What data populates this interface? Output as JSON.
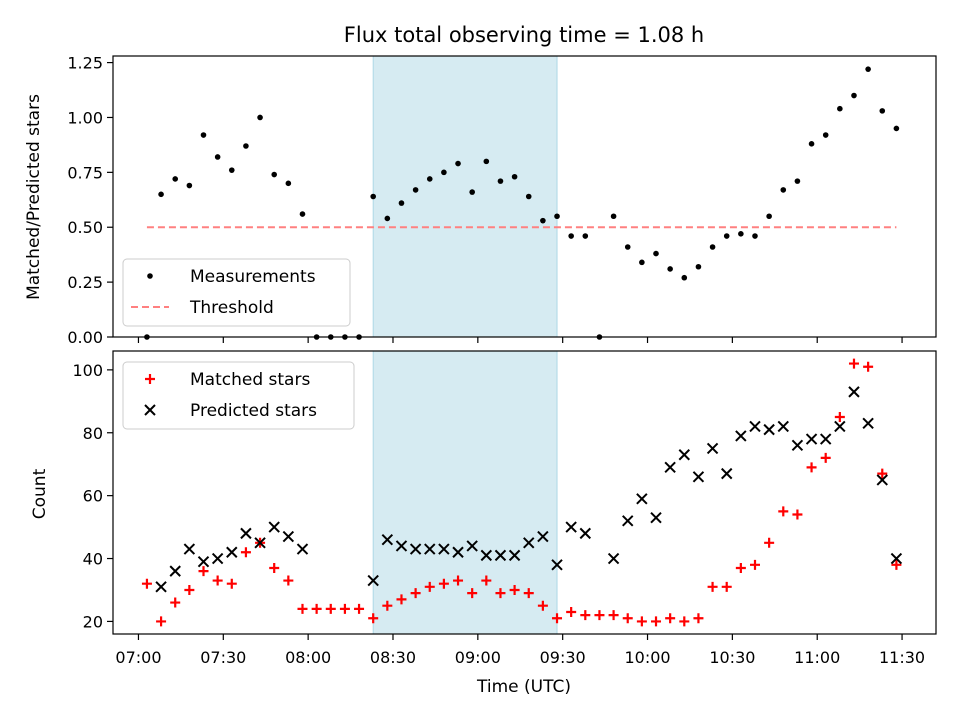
{
  "chart_data": [
    {
      "type": "scatter",
      "title": "Flux total observing time = 1.08 h",
      "ylabel": "Matched/Predicted stars",
      "xlabel": "",
      "xlim": [
        "06:51",
        "11:42"
      ],
      "ylim": [
        0,
        1.28
      ],
      "y_ticks": [
        "0.00",
        "0.25",
        "0.50",
        "0.75",
        "1.00",
        "1.25"
      ],
      "x_ticks": [
        "07:00",
        "07:30",
        "08:00",
        "08:30",
        "09:00",
        "09:30",
        "10:00",
        "10:30",
        "11:00",
        "11:30"
      ],
      "shaded_span": [
        "08:23",
        "09:28"
      ],
      "legend_position": "lower-left",
      "series": [
        {
          "name": "Measurements",
          "color": "#000000",
          "marker": "dot",
          "x": [
            "07:03",
            "07:08",
            "07:13",
            "07:18",
            "07:23",
            "07:28",
            "07:33",
            "07:38",
            "07:43",
            "07:48",
            "07:53",
            "07:58",
            "08:03",
            "08:08",
            "08:13",
            "08:18",
            "08:23",
            "08:28",
            "08:33",
            "08:38",
            "08:43",
            "08:48",
            "08:53",
            "08:58",
            "09:03",
            "09:08",
            "09:13",
            "09:18",
            "09:23",
            "09:28",
            "09:33",
            "09:38",
            "09:43",
            "09:48",
            "09:53",
            "09:58",
            "10:03",
            "10:08",
            "10:13",
            "10:18",
            "10:23",
            "10:28",
            "10:33",
            "10:38",
            "10:43",
            "10:48",
            "10:53",
            "10:58",
            "11:03",
            "11:08",
            "11:13",
            "11:18",
            "11:23",
            "11:28"
          ],
          "y": [
            0.0,
            0.65,
            0.72,
            0.69,
            0.92,
            0.82,
            0.76,
            0.87,
            1.0,
            0.74,
            0.7,
            0.56,
            0.0,
            0.0,
            0.0,
            0.0,
            0.64,
            0.54,
            0.61,
            0.67,
            0.72,
            0.75,
            0.79,
            0.66,
            0.8,
            0.71,
            0.73,
            0.64,
            0.53,
            0.55,
            0.46,
            0.46,
            0.0,
            0.55,
            0.41,
            0.34,
            0.38,
            0.31,
            0.27,
            0.32,
            0.41,
            0.46,
            0.47,
            0.46,
            0.55,
            0.67,
            0.71,
            0.88,
            0.92,
            1.04,
            1.1,
            1.22,
            1.03,
            0.95
          ]
        },
        {
          "name": "Threshold",
          "color": "#ff8080",
          "style": "dashed",
          "x": [
            "07:03",
            "11:28"
          ],
          "y": [
            0.5,
            0.5
          ]
        }
      ]
    },
    {
      "type": "scatter",
      "title": "",
      "ylabel": "Count",
      "xlabel": "Time (UTC)",
      "xlim": [
        "06:51",
        "11:42"
      ],
      "ylim": [
        16,
        106
      ],
      "y_ticks": [
        "20",
        "40",
        "60",
        "80",
        "100"
      ],
      "x_ticks": [
        "07:00",
        "07:30",
        "08:00",
        "08:30",
        "09:00",
        "09:30",
        "10:00",
        "10:30",
        "11:00",
        "11:30"
      ],
      "shaded_span": [
        "08:23",
        "09:28"
      ],
      "legend_position": "upper-left",
      "series": [
        {
          "name": "Matched stars",
          "color": "#ff0000",
          "marker": "plus",
          "x": [
            "07:03",
            "07:08",
            "07:13",
            "07:18",
            "07:23",
            "07:28",
            "07:33",
            "07:38",
            "07:43",
            "07:48",
            "07:53",
            "07:58",
            "08:03",
            "08:08",
            "08:13",
            "08:18",
            "08:23",
            "08:28",
            "08:33",
            "08:38",
            "08:43",
            "08:48",
            "08:53",
            "08:58",
            "09:03",
            "09:08",
            "09:13",
            "09:18",
            "09:23",
            "09:28",
            "09:33",
            "09:38",
            "09:43",
            "09:48",
            "09:53",
            "09:58",
            "10:03",
            "10:08",
            "10:13",
            "10:18",
            "10:23",
            "10:28",
            "10:33",
            "10:38",
            "10:43",
            "10:48",
            "10:53",
            "10:58",
            "11:03",
            "11:08",
            "11:13",
            "11:18",
            "11:23",
            "11:28"
          ],
          "y": [
            32,
            20,
            26,
            30,
            36,
            33,
            32,
            42,
            45,
            37,
            33,
            24,
            24,
            24,
            24,
            24,
            21,
            25,
            27,
            29,
            31,
            32,
            33,
            29,
            33,
            29,
            30,
            29,
            25,
            21,
            23,
            22,
            22,
            22,
            21,
            20,
            20,
            21,
            20,
            21,
            31,
            31,
            37,
            38,
            45,
            55,
            54,
            69,
            72,
            85,
            102,
            101,
            67,
            38
          ]
        },
        {
          "name": "Predicted stars",
          "color": "#000000",
          "marker": "x",
          "x": [
            "07:08",
            "07:13",
            "07:18",
            "07:23",
            "07:28",
            "07:33",
            "07:38",
            "07:43",
            "07:48",
            "07:53",
            "07:58",
            "08:23",
            "08:28",
            "08:33",
            "08:38",
            "08:43",
            "08:48",
            "08:53",
            "08:58",
            "09:03",
            "09:08",
            "09:13",
            "09:18",
            "09:23",
            "09:28",
            "09:33",
            "09:38",
            "09:48",
            "09:53",
            "09:58",
            "10:03",
            "10:08",
            "10:13",
            "10:18",
            "10:23",
            "10:28",
            "10:33",
            "10:38",
            "10:43",
            "10:48",
            "10:53",
            "10:58",
            "11:03",
            "11:08",
            "11:13",
            "11:18",
            "11:23",
            "11:28"
          ],
          "y": [
            31,
            36,
            43,
            39,
            40,
            42,
            48,
            45,
            50,
            47,
            43,
            33,
            46,
            44,
            43,
            43,
            43,
            42,
            44,
            41,
            41,
            41,
            45,
            47,
            38,
            50,
            48,
            40,
            52,
            59,
            53,
            69,
            73,
            66,
            75,
            67,
            79,
            82,
            81,
            82,
            76,
            78,
            78,
            82,
            93,
            83,
            65,
            40
          ]
        }
      ]
    }
  ]
}
